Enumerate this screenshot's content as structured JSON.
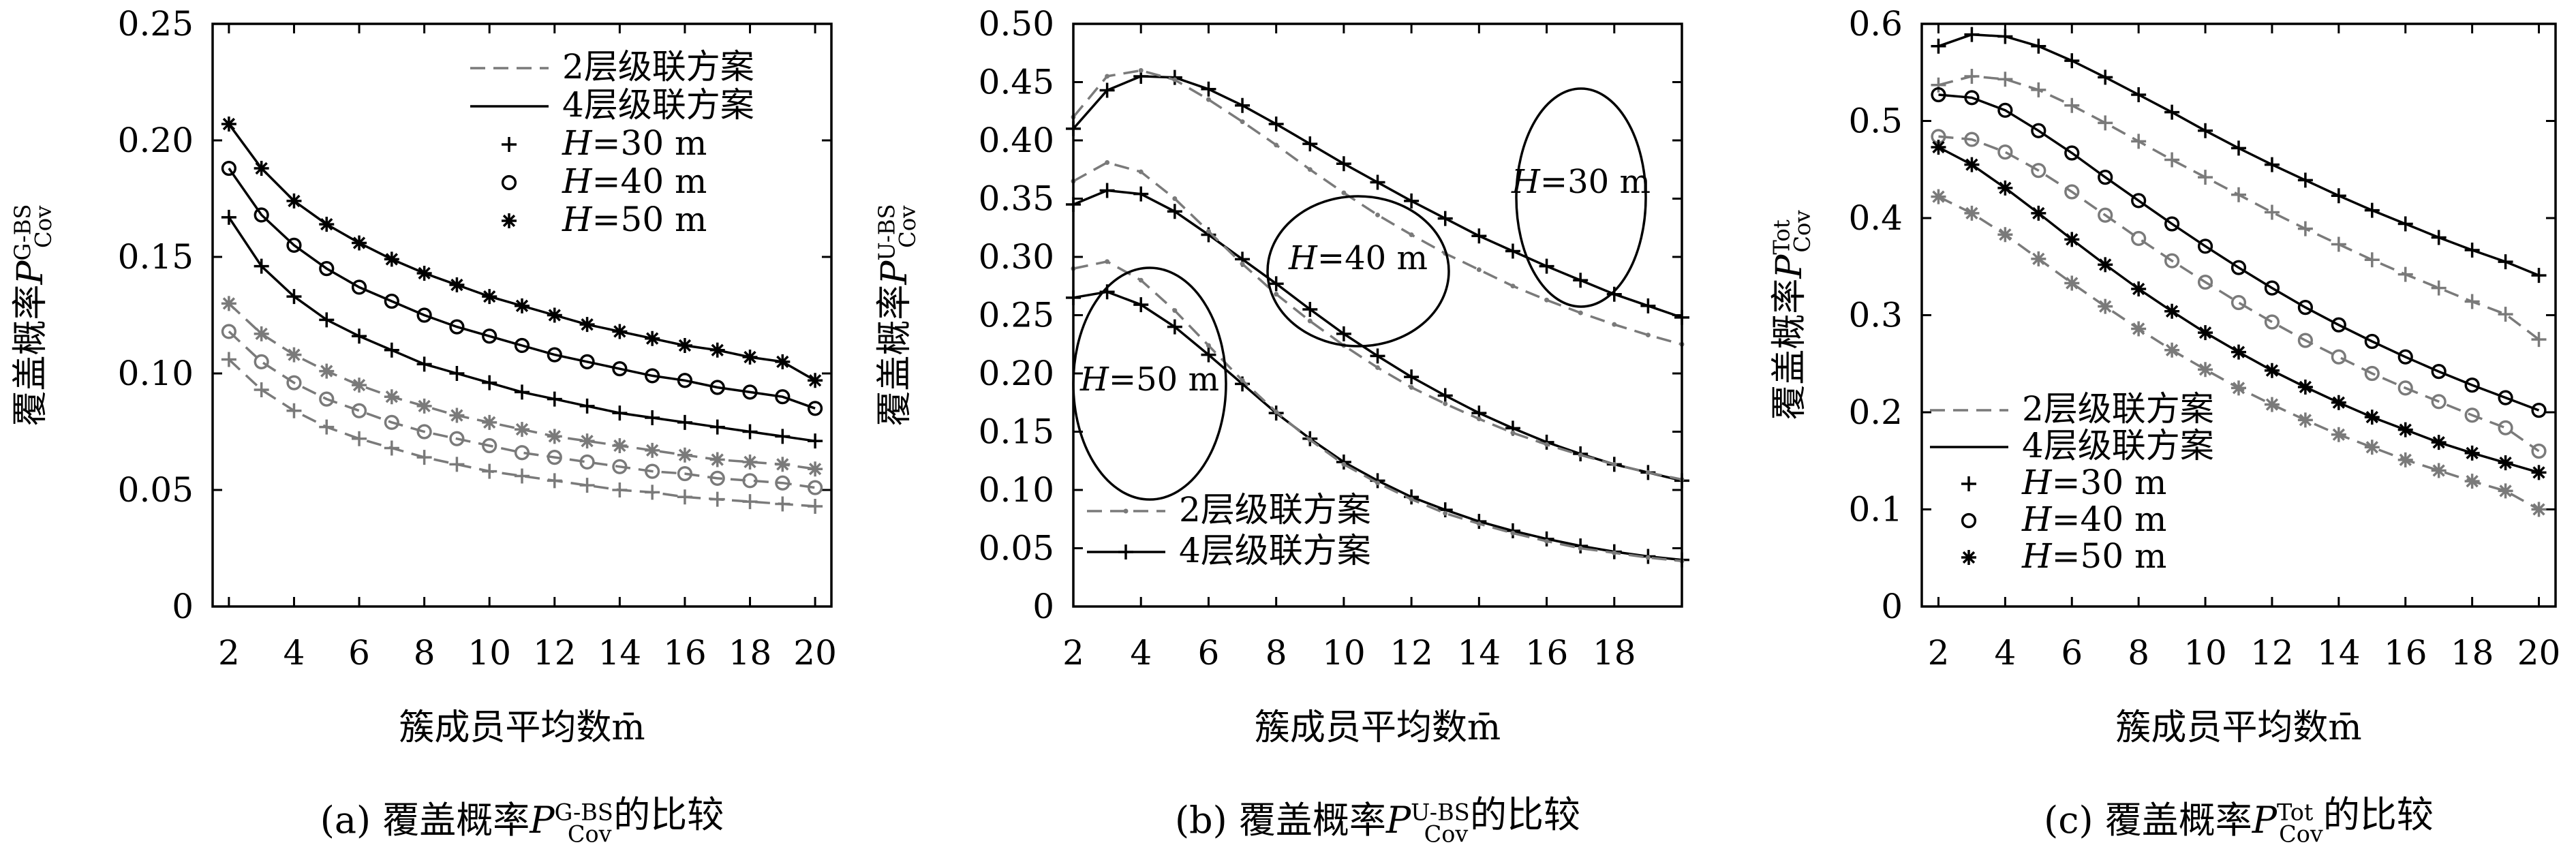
{
  "figure": {
    "captions": [
      "(a) 覆盖概率P_Cov^G-BS的比较",
      "(b) 覆盖概率P_Cov^U-BS的比较",
      "(c) 覆盖概率P_Cov^Tot的比较"
    ]
  },
  "chart_data": [
    {
      "type": "line",
      "title": "",
      "caption": "(a) 覆盖概率P_Cov^G-BS的比较",
      "xlabel": "簇成员平均数m̄",
      "ylabel": "覆盖概率P_Cov^G-BS",
      "xlim": [
        1.5,
        20.5
      ],
      "ylim": [
        0,
        0.25
      ],
      "xticks": [
        "2",
        "4",
        "6",
        "8",
        "10",
        "12",
        "14",
        "16",
        "18",
        "20"
      ],
      "yticks": [
        "0",
        "0.05",
        "0.10",
        "0.15",
        "0.20",
        "0.25"
      ],
      "legend_position": "top-right",
      "legend": [
        "2层级联方案",
        "4层级联方案",
        "H=30 m",
        "H=40 m",
        "H=50 m"
      ],
      "x": [
        2,
        3,
        4,
        5,
        6,
        7,
        8,
        9,
        10,
        11,
        12,
        13,
        14,
        15,
        16,
        17,
        18,
        19,
        20
      ],
      "series": [
        {
          "name": "4层级联方案, H=50 m",
          "scheme": "4-tier",
          "marker": "star",
          "values": [
            0.207,
            0.188,
            0.174,
            0.164,
            0.156,
            0.149,
            0.143,
            0.138,
            0.133,
            0.129,
            0.125,
            0.121,
            0.118,
            0.115,
            0.112,
            0.11,
            0.107,
            0.105,
            0.097
          ]
        },
        {
          "name": "4层级联方案, H=40 m",
          "scheme": "4-tier",
          "marker": "circle",
          "values": [
            0.188,
            0.168,
            0.155,
            0.145,
            0.137,
            0.131,
            0.125,
            0.12,
            0.116,
            0.112,
            0.108,
            0.105,
            0.102,
            0.099,
            0.097,
            0.094,
            0.092,
            0.09,
            0.085
          ]
        },
        {
          "name": "4层级联方案, H=30 m",
          "scheme": "4-tier",
          "marker": "plus",
          "values": [
            0.167,
            0.146,
            0.133,
            0.123,
            0.116,
            0.11,
            0.104,
            0.1,
            0.096,
            0.092,
            0.089,
            0.086,
            0.083,
            0.081,
            0.079,
            0.077,
            0.075,
            0.073,
            0.071
          ]
        },
        {
          "name": "2层级联方案, H=50 m",
          "scheme": "2-tier",
          "marker": "star",
          "values": [
            0.13,
            0.117,
            0.108,
            0.101,
            0.095,
            0.09,
            0.086,
            0.082,
            0.079,
            0.076,
            0.073,
            0.071,
            0.069,
            0.067,
            0.065,
            0.063,
            0.062,
            0.061,
            0.059
          ]
        },
        {
          "name": "2层级联方案, H=40 m",
          "scheme": "2-tier",
          "marker": "circle",
          "values": [
            0.118,
            0.105,
            0.096,
            0.089,
            0.084,
            0.079,
            0.075,
            0.072,
            0.069,
            0.066,
            0.064,
            0.062,
            0.06,
            0.058,
            0.057,
            0.055,
            0.054,
            0.053,
            0.051
          ]
        },
        {
          "name": "2层级联方案, H=30 m",
          "scheme": "2-tier",
          "marker": "plus",
          "values": [
            0.106,
            0.093,
            0.084,
            0.077,
            0.072,
            0.068,
            0.064,
            0.061,
            0.058,
            0.056,
            0.054,
            0.052,
            0.05,
            0.049,
            0.047,
            0.046,
            0.045,
            0.044,
            0.043
          ]
        }
      ]
    },
    {
      "type": "line",
      "title": "",
      "caption": "(b) 覆盖概率P_Cov^U-BS的比较",
      "xlabel": "簇成员平均数m̄",
      "ylabel": "覆盖概率P_Cov^U-BS",
      "xlim": [
        2,
        20
      ],
      "ylim": [
        0,
        0.5
      ],
      "xticks": [
        "2",
        "4",
        "6",
        "8",
        "10",
        "12",
        "14",
        "16",
        "18"
      ],
      "yticks": [
        "0",
        "0.05",
        "0.10",
        "0.15",
        "0.20",
        "0.25",
        "0.30",
        "0.35",
        "0.40",
        "0.45",
        "0.50"
      ],
      "legend_position": "bottom-left",
      "legend": [
        "2层级联方案",
        "4层级联方案"
      ],
      "annotations": [
        "H=30 m",
        "H=40 m",
        "H=50 m"
      ],
      "x": [
        2,
        3,
        4,
        5,
        6,
        7,
        8,
        9,
        10,
        11,
        12,
        13,
        14,
        15,
        16,
        17,
        18,
        19,
        20
      ],
      "series": [
        {
          "name": "4层级联方案, H=30 m",
          "scheme": "4-tier",
          "marker": "plus",
          "values": [
            0.41,
            0.443,
            0.455,
            0.454,
            0.444,
            0.43,
            0.414,
            0.397,
            0.38,
            0.364,
            0.348,
            0.333,
            0.318,
            0.305,
            0.292,
            0.28,
            0.268,
            0.258,
            0.248
          ]
        },
        {
          "name": "2层级联方案, H=30 m",
          "scheme": "2-tier",
          "marker": "dot",
          "values": [
            0.42,
            0.455,
            0.46,
            0.452,
            0.435,
            0.416,
            0.396,
            0.375,
            0.355,
            0.336,
            0.319,
            0.303,
            0.289,
            0.275,
            0.263,
            0.252,
            0.242,
            0.233,
            0.225
          ]
        },
        {
          "name": "4层级联方案, H=40 m",
          "scheme": "4-tier",
          "marker": "plus",
          "values": [
            0.345,
            0.357,
            0.354,
            0.339,
            0.319,
            0.298,
            0.277,
            0.255,
            0.234,
            0.215,
            0.197,
            0.181,
            0.166,
            0.153,
            0.141,
            0.131,
            0.122,
            0.115,
            0.108
          ]
        },
        {
          "name": "2层级联方案, H=40 m",
          "scheme": "2-tier",
          "marker": "dot",
          "values": [
            0.365,
            0.381,
            0.373,
            0.35,
            0.322,
            0.294,
            0.268,
            0.245,
            0.224,
            0.205,
            0.188,
            0.174,
            0.161,
            0.149,
            0.139,
            0.13,
            0.122,
            0.115,
            0.109
          ]
        },
        {
          "name": "4层级联方案, H=50 m",
          "scheme": "4-tier",
          "marker": "plus",
          "values": [
            0.265,
            0.27,
            0.259,
            0.24,
            0.216,
            0.191,
            0.166,
            0.144,
            0.124,
            0.108,
            0.094,
            0.083,
            0.073,
            0.065,
            0.058,
            0.052,
            0.047,
            0.043,
            0.04
          ]
        },
        {
          "name": "2层级联方案, H=50 m",
          "scheme": "2-tier",
          "marker": "dot",
          "values": [
            0.29,
            0.296,
            0.28,
            0.254,
            0.224,
            0.194,
            0.167,
            0.143,
            0.122,
            0.106,
            0.092,
            0.08,
            0.071,
            0.063,
            0.056,
            0.05,
            0.046,
            0.042,
            0.039
          ]
        }
      ]
    },
    {
      "type": "line",
      "title": "",
      "caption": "(c) 覆盖概率P_Cov^Tot的比较",
      "xlabel": "簇成员平均数m̄",
      "ylabel": "覆盖概率P_Cov^Tot",
      "xlim": [
        1.5,
        20.5
      ],
      "ylim": [
        0,
        0.6
      ],
      "xticks": [
        "2",
        "4",
        "6",
        "8",
        "10",
        "12",
        "14",
        "16",
        "18",
        "20"
      ],
      "yticks": [
        "0",
        "0.1",
        "0.2",
        "0.3",
        "0.4",
        "0.5",
        "0.6"
      ],
      "legend_position": "bottom-left",
      "legend": [
        "2层级联方案",
        "4层级联方案",
        "H=30 m",
        "H=40 m",
        "H=50 m"
      ],
      "x": [
        2,
        3,
        4,
        5,
        6,
        7,
        8,
        9,
        10,
        11,
        12,
        13,
        14,
        15,
        16,
        17,
        18,
        19,
        20
      ],
      "series": [
        {
          "name": "4层级联方案, H=30 m",
          "scheme": "4-tier",
          "marker": "plus",
          "values": [
            0.577,
            0.589,
            0.587,
            0.577,
            0.562,
            0.545,
            0.527,
            0.509,
            0.49,
            0.472,
            0.455,
            0.439,
            0.423,
            0.408,
            0.394,
            0.38,
            0.367,
            0.355,
            0.341
          ]
        },
        {
          "name": "2层级联方案, H=30 m",
          "scheme": "2-tier",
          "marker": "plus",
          "values": [
            0.537,
            0.546,
            0.543,
            0.532,
            0.516,
            0.498,
            0.479,
            0.46,
            0.442,
            0.424,
            0.406,
            0.389,
            0.373,
            0.357,
            0.342,
            0.328,
            0.314,
            0.301,
            0.275
          ]
        },
        {
          "name": "4层级联方案, H=40 m",
          "scheme": "4-tier",
          "marker": "circle",
          "values": [
            0.527,
            0.524,
            0.511,
            0.49,
            0.467,
            0.442,
            0.418,
            0.394,
            0.371,
            0.349,
            0.328,
            0.308,
            0.29,
            0.273,
            0.257,
            0.242,
            0.228,
            0.215,
            0.202
          ]
        },
        {
          "name": "2层级联方案, H=40 m",
          "scheme": "2-tier",
          "marker": "circle",
          "values": [
            0.484,
            0.481,
            0.468,
            0.449,
            0.427,
            0.403,
            0.379,
            0.356,
            0.334,
            0.313,
            0.293,
            0.274,
            0.257,
            0.24,
            0.225,
            0.211,
            0.197,
            0.184,
            0.16
          ]
        },
        {
          "name": "4层级联方案, H=50 m",
          "scheme": "4-tier",
          "marker": "star",
          "values": [
            0.473,
            0.455,
            0.431,
            0.405,
            0.378,
            0.352,
            0.327,
            0.304,
            0.282,
            0.262,
            0.243,
            0.226,
            0.21,
            0.195,
            0.182,
            0.169,
            0.158,
            0.148,
            0.138
          ]
        },
        {
          "name": "2层级联方案, H=50 m",
          "scheme": "2-tier",
          "marker": "star",
          "values": [
            0.422,
            0.405,
            0.383,
            0.358,
            0.333,
            0.309,
            0.286,
            0.264,
            0.244,
            0.225,
            0.208,
            0.192,
            0.177,
            0.164,
            0.151,
            0.14,
            0.129,
            0.119,
            0.1
          ]
        }
      ]
    }
  ]
}
